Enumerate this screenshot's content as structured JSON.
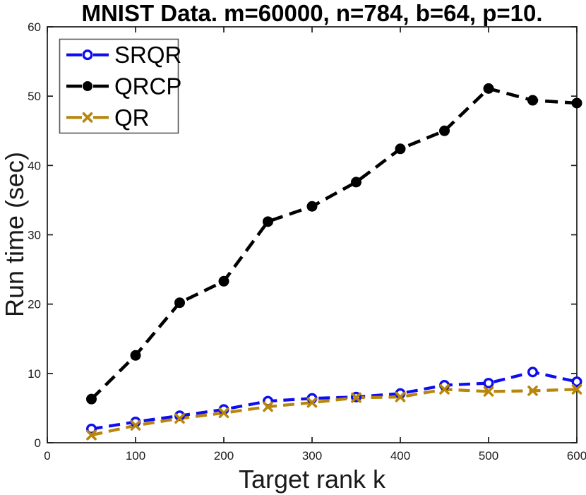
{
  "chart_data": {
    "type": "line",
    "title": "MNIST Data. m=60000, n=784, b=64, p=10.",
    "xlabel": "Target rank k",
    "ylabel": "Run time (sec)",
    "xlim": [
      0,
      600
    ],
    "ylim": [
      0,
      60
    ],
    "xticks": [
      0,
      100,
      200,
      300,
      400,
      500,
      600
    ],
    "yticks": [
      0,
      10,
      20,
      30,
      40,
      50,
      60
    ],
    "grid": false,
    "legend_position": "top-left",
    "x": [
      50,
      100,
      150,
      200,
      250,
      300,
      350,
      400,
      450,
      500,
      550,
      600
    ],
    "series": [
      {
        "name": "SRQR",
        "color": "#0d0dee",
        "line": "dashed",
        "marker": "circle-open",
        "values": [
          2.0,
          3.0,
          3.9,
          4.8,
          6.0,
          6.4,
          6.6,
          7.1,
          8.3,
          8.6,
          10.2,
          8.8
        ]
      },
      {
        "name": "QRCP",
        "color": "#000000",
        "line": "dashed",
        "marker": "circle-filled",
        "values": [
          6.3,
          12.6,
          20.2,
          23.3,
          31.9,
          34.1,
          37.6,
          42.4,
          45.0,
          51.1,
          49.4,
          49.0
        ]
      },
      {
        "name": "QR",
        "color": "#b8860b",
        "line": "dashed",
        "marker": "x",
        "values": [
          1.1,
          2.5,
          3.5,
          4.3,
          5.2,
          5.8,
          6.5,
          6.6,
          7.7,
          7.4,
          7.5,
          7.7
        ]
      }
    ]
  },
  "axis_style": {
    "spine_color": "#1a1a1a",
    "tick_label_color": "#1a1a1a",
    "legend_border_color": "#545454",
    "background": "#ffffff"
  }
}
